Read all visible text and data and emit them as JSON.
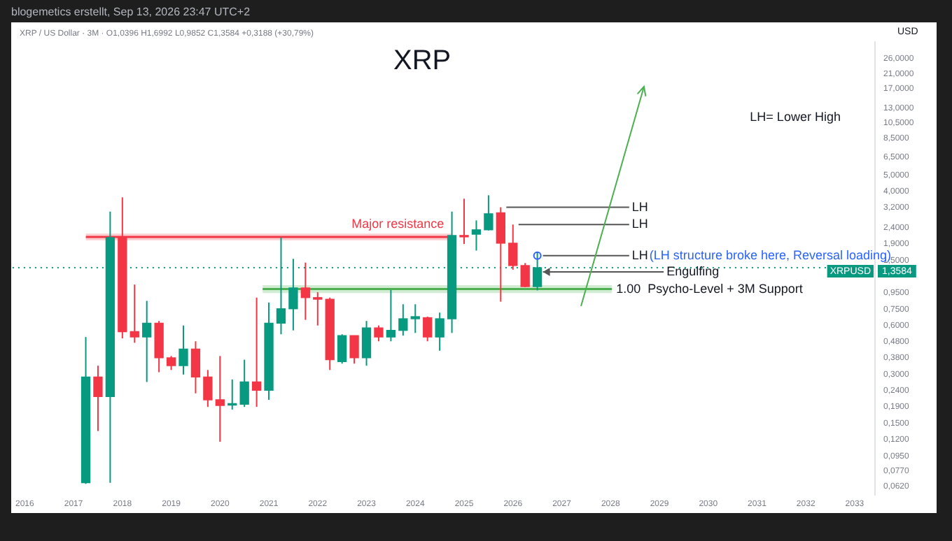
{
  "chart_data": {
    "type": "candlestick",
    "title": "XRP",
    "ylabel": "USD",
    "log": true,
    "x": [
      "2017-04",
      "2017-07",
      "2017-10",
      "2018-01",
      "2018-04",
      "2018-07",
      "2018-10",
      "2019-01",
      "2019-04",
      "2019-07",
      "2019-10",
      "2020-01",
      "2020-04",
      "2020-07",
      "2020-10",
      "2021-01",
      "2021-04",
      "2021-07",
      "2021-10",
      "2022-01",
      "2022-04",
      "2022-07",
      "2022-10",
      "2023-01",
      "2023-04",
      "2023-07",
      "2023-10",
      "2024-01",
      "2024-04",
      "2024-07",
      "2024-10",
      "2025-01",
      "2025-04",
      "2025-07",
      "2025-10",
      "2026-01",
      "2026-04",
      "2026-07"
    ],
    "ohlc": [
      [
        0.065,
        0.51,
        0.064,
        0.29
      ],
      [
        0.29,
        0.34,
        0.135,
        0.22
      ],
      [
        0.22,
        3.0,
        0.065,
        2.08
      ],
      [
        2.08,
        3.67,
        0.5,
        0.55
      ],
      [
        0.55,
        1.07,
        0.47,
        0.51
      ],
      [
        0.51,
        0.85,
        0.27,
        0.62
      ],
      [
        0.62,
        0.64,
        0.31,
        0.38
      ],
      [
        0.38,
        0.39,
        0.32,
        0.34
      ],
      [
        0.34,
        0.6,
        0.3,
        0.43
      ],
      [
        0.43,
        0.48,
        0.23,
        0.29
      ],
      [
        0.29,
        0.32,
        0.19,
        0.21
      ],
      [
        0.21,
        0.39,
        0.116,
        0.194
      ],
      [
        0.195,
        0.28,
        0.183,
        0.197
      ],
      [
        0.197,
        0.37,
        0.19,
        0.27
      ],
      [
        0.27,
        0.89,
        0.19,
        0.24
      ],
      [
        0.24,
        0.83,
        0.21,
        0.62
      ],
      [
        0.62,
        2.08,
        0.53,
        0.76
      ],
      [
        0.76,
        1.54,
        0.56,
        1.02
      ],
      [
        1.02,
        1.46,
        0.65,
        0.89
      ],
      [
        0.89,
        0.96,
        0.6,
        0.87
      ],
      [
        0.87,
        0.89,
        0.32,
        0.37
      ],
      [
        0.36,
        0.53,
        0.35,
        0.52
      ],
      [
        0.52,
        0.52,
        0.35,
        0.38
      ],
      [
        0.38,
        0.64,
        0.34,
        0.58
      ],
      [
        0.58,
        0.6,
        0.48,
        0.51
      ],
      [
        0.51,
        0.99,
        0.48,
        0.56
      ],
      [
        0.56,
        0.81,
        0.52,
        0.66
      ],
      [
        0.66,
        0.81,
        0.54,
        0.68
      ],
      [
        0.67,
        0.68,
        0.48,
        0.51
      ],
      [
        0.51,
        0.72,
        0.42,
        0.66
      ],
      [
        0.66,
        3.0,
        0.54,
        2.14
      ],
      [
        2.14,
        3.6,
        1.9,
        2.1
      ],
      [
        2.18,
        2.65,
        1.73,
        2.32
      ],
      [
        2.32,
        3.78,
        2.3,
        2.91
      ],
      [
        2.95,
        3.19,
        0.84,
        1.92
      ],
      [
        1.92,
        2.5,
        1.32,
        1.4
      ],
      [
        1.4,
        1.45,
        1.03,
        1.04
      ],
      [
        1.0396,
        1.6992,
        0.9852,
        1.3584
      ]
    ],
    "colors": [
      "#089981",
      "#f23645",
      "#089981",
      "#f23645",
      "#f23645",
      "#089981",
      "#f23645",
      "#f23645",
      "#089981",
      "#f23645",
      "#f23645",
      "#f23645",
      "#089981",
      "#089981",
      "#f23645",
      "#089981",
      "#089981",
      "#089981",
      "#f23645",
      "#f23645",
      "#f23645",
      "#089981",
      "#f23645",
      "#089981",
      "#f23645",
      "#089981",
      "#089981",
      "#089981",
      "#f23645",
      "#089981",
      "#089981",
      "#f23645",
      "#089981",
      "#089981",
      "#f23645",
      "#f23645",
      "#f23645",
      "#089981"
    ],
    "xlim": [
      "2015-10",
      "2033-06"
    ],
    "xticks": [
      "2016",
      "2017",
      "2018",
      "2019",
      "2020",
      "2021",
      "2022",
      "2023",
      "2024",
      "2025",
      "2026",
      "2027",
      "2028",
      "2029",
      "2030",
      "2031",
      "2032",
      "2033"
    ],
    "ylim": [
      0.055,
      33
    ],
    "yticks": [
      {
        "value": 26,
        "label": "26,0000"
      },
      {
        "value": 21,
        "label": "21,0000"
      },
      {
        "value": 17,
        "label": "17,0000"
      },
      {
        "value": 13,
        "label": "13,0000"
      },
      {
        "value": 10.5,
        "label": "10,5000"
      },
      {
        "value": 8.5,
        "label": "8,5000"
      },
      {
        "value": 6.5,
        "label": "6,5000"
      },
      {
        "value": 5,
        "label": "5,0000"
      },
      {
        "value": 4,
        "label": "4,0000"
      },
      {
        "value": 3.2,
        "label": "3,2000"
      },
      {
        "value": 2.4,
        "label": "2,4000"
      },
      {
        "value": 1.9,
        "label": "1,9000"
      },
      {
        "value": 1.5,
        "label": "1,5000"
      },
      {
        "value": 0.95,
        "label": "0,9500"
      },
      {
        "value": 0.75,
        "label": "0,7500"
      },
      {
        "value": 0.6,
        "label": "0,6000"
      },
      {
        "value": 0.48,
        "label": "0,4800"
      },
      {
        "value": 0.38,
        "label": "0,3800"
      },
      {
        "value": 0.3,
        "label": "0,3000"
      },
      {
        "value": 0.24,
        "label": "0,2400"
      },
      {
        "value": 0.19,
        "label": "0,1900"
      },
      {
        "value": 0.15,
        "label": "0,1500"
      },
      {
        "value": 0.12,
        "label": "0,1200"
      },
      {
        "value": 0.095,
        "label": "0,0950"
      },
      {
        "value": 0.077,
        "label": "0,0770"
      },
      {
        "value": 0.062,
        "label": "0,0620"
      }
    ],
    "ref_lines": [
      {
        "axis": "y",
        "value": 1.3584,
        "label": "1,3584",
        "color": "#089981",
        "line_style": "dotted"
      }
    ],
    "bands": [
      {
        "axis": "y",
        "from": 2.0,
        "to": 2.2,
        "label": "Major resistance",
        "color": "#f23645"
      },
      {
        "axis": "y",
        "from": 0.95,
        "to": 1.06,
        "label": "1.00  Psycho-Level + 3M Support",
        "color": "#4caf50"
      }
    ],
    "annotations": [
      "blogemetics erstellt, Sep 13, 2026 23:47 UTC+2",
      "XRP / US Dollar · 3M · O1,0396 H1,6992 L0,9852 C1,3584 +0,3188 (+30,79%)",
      "LH= Lower High",
      {
        "text": "LH",
        "x": "2025-10",
        "y": 3.19
      },
      {
        "text": "LH",
        "x": "2026-01",
        "y": 2.5
      },
      {
        "text": "LH",
        "x": "2026-07",
        "y": 1.61
      },
      "(LH structure broke here, Reversal loading)",
      {
        "text": "Engulfing",
        "x": "2026-07",
        "y": 1.28
      },
      "XRPUSD"
    ]
  }
}
